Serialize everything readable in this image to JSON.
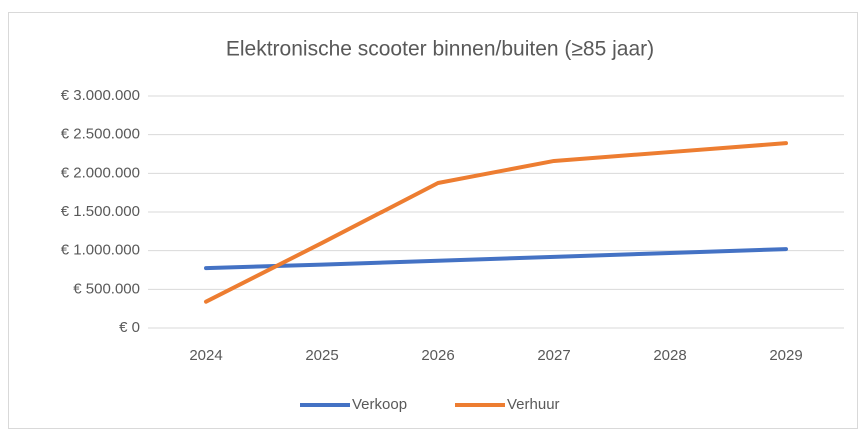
{
  "chart_data": {
    "type": "line",
    "title": "Elektronische scooter binnen/buiten (≥85 jaar)",
    "categories": [
      "2024",
      "2025",
      "2026",
      "2027",
      "2028",
      "2029"
    ],
    "series": [
      {
        "name": "Verkoop",
        "color": "#4472c4",
        "values": [
          775000,
          820000,
          870000,
          920000,
          970000,
          1020000
        ]
      },
      {
        "name": "Verhuur",
        "color": "#ed7d31",
        "values": [
          340000,
          1100000,
          1875000,
          2160000,
          2275000,
          2390000
        ]
      }
    ],
    "ylim": [
      0,
      3000000
    ],
    "yticks": [
      {
        "value": 0,
        "label": "€ 0"
      },
      {
        "value": 500000,
        "label": "€ 500.000"
      },
      {
        "value": 1000000,
        "label": "€ 1.000.000"
      },
      {
        "value": 1500000,
        "label": "€ 1.500.000"
      },
      {
        "value": 2000000,
        "label": "€ 2.000.000"
      },
      {
        "value": 2500000,
        "label": "€ 2.500.000"
      },
      {
        "value": 3000000,
        "label": "€ 3.000.000"
      }
    ],
    "grid": true,
    "legend": "bottom"
  }
}
